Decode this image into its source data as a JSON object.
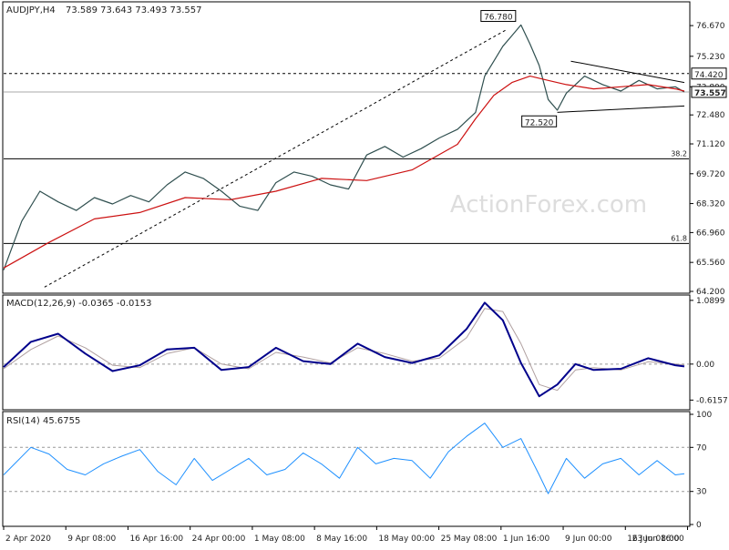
{
  "chart_data": {
    "type": "line",
    "symbol": "AUDJPY,H4",
    "ohlc_header": "73.589 73.643 73.493 73.557",
    "price_panel": {
      "ylim": [
        64.2,
        77.7
      ],
      "ticks": [
        "76.670",
        "75.230",
        "73.800",
        "72.480",
        "71.120",
        "69.720",
        "68.320",
        "66.960",
        "65.560",
        "64.200"
      ],
      "tick_values": [
        76.67,
        75.23,
        73.8,
        72.48,
        71.12,
        69.72,
        68.32,
        66.96,
        65.56,
        64.2
      ],
      "current_price": {
        "label": "73.557",
        "value": 73.557
      },
      "resistance": {
        "label": "74.420",
        "value": 74.42
      },
      "fib_levels": [
        {
          "label": "38.2",
          "value": 70.42
        },
        {
          "label": "61.8",
          "value": 66.45
        }
      ],
      "annotations": [
        {
          "label": "76.780",
          "x": 109,
          "value": 76.78
        },
        {
          "label": "72.520",
          "x": 118,
          "value": 72.52
        }
      ],
      "price_series": {
        "x": [
          0,
          4,
          8,
          12,
          16,
          20,
          24,
          28,
          32,
          36,
          40,
          44,
          48,
          52,
          56,
          60,
          64,
          68,
          72,
          76,
          80,
          84,
          88,
          92,
          96,
          100,
          104,
          106,
          108,
          110,
          112,
          114,
          116,
          118,
          120,
          122,
          124,
          128,
          132,
          136,
          140,
          144,
          148,
          150
        ],
        "values": [
          65.2,
          67.5,
          68.9,
          68.4,
          68.0,
          68.6,
          68.3,
          68.7,
          68.4,
          69.2,
          69.8,
          69.5,
          68.9,
          68.2,
          68.0,
          69.3,
          69.8,
          69.6,
          69.2,
          69.0,
          70.6,
          71.0,
          70.5,
          70.9,
          71.4,
          71.8,
          72.6,
          74.3,
          75.0,
          75.7,
          76.2,
          76.7,
          75.8,
          74.8,
          73.2,
          72.7,
          73.5,
          74.3,
          73.9,
          73.6,
          74.1,
          73.7,
          73.8,
          73.557
        ]
      },
      "ma_series": {
        "x": [
          0,
          10,
          20,
          30,
          40,
          50,
          60,
          70,
          80,
          90,
          100,
          104,
          108,
          112,
          116,
          120,
          124,
          130,
          136,
          142,
          148,
          150
        ],
        "values": [
          65.3,
          66.5,
          67.6,
          67.9,
          68.6,
          68.5,
          68.9,
          69.5,
          69.4,
          69.9,
          71.1,
          72.3,
          73.4,
          74.0,
          74.3,
          74.1,
          73.9,
          73.7,
          73.8,
          73.9,
          73.7,
          73.6
        ]
      },
      "triangle_upper": [
        {
          "x": 125,
          "value": 75.0
        },
        {
          "x": 150,
          "value": 74.0
        }
      ],
      "triangle_lower": [
        {
          "x": 122,
          "value": 72.6
        },
        {
          "x": 150,
          "value": 72.9
        }
      ],
      "trendline": [
        {
          "x": 9,
          "value": 64.4
        },
        {
          "x": 111,
          "value": 76.5
        }
      ]
    },
    "macd_panel": {
      "label": "MACD(12,26,9) -0.0365 -0.0153",
      "ylim": [
        -0.75,
        1.15
      ],
      "ticks": [
        "1.0899",
        "0.00",
        "-0.6157"
      ],
      "tick_values": [
        1.0899,
        0.0,
        -0.6157
      ],
      "macd": {
        "x": [
          0,
          6,
          12,
          18,
          24,
          30,
          36,
          42,
          48,
          54,
          60,
          66,
          72,
          78,
          84,
          90,
          96,
          102,
          106,
          110,
          114,
          118,
          122,
          126,
          130,
          136,
          142,
          148,
          150
        ],
        "values": [
          -0.05,
          0.38,
          0.52,
          0.18,
          -0.12,
          -0.02,
          0.25,
          0.28,
          -0.1,
          -0.05,
          0.28,
          0.05,
          0.0,
          0.35,
          0.12,
          0.02,
          0.15,
          0.6,
          1.05,
          0.75,
          0.02,
          -0.55,
          -0.35,
          0.0,
          -0.1,
          -0.08,
          0.1,
          -0.02,
          -0.04
        ]
      },
      "signal": {
        "x": [
          0,
          6,
          12,
          18,
          24,
          30,
          36,
          42,
          48,
          54,
          60,
          66,
          72,
          78,
          84,
          90,
          96,
          102,
          106,
          110,
          114,
          118,
          122,
          126,
          130,
          136,
          142,
          148,
          150
        ],
        "values": [
          -0.08,
          0.25,
          0.48,
          0.28,
          -0.02,
          -0.06,
          0.18,
          0.28,
          0.0,
          -0.08,
          0.2,
          0.12,
          0.02,
          0.28,
          0.18,
          0.05,
          0.1,
          0.45,
          0.95,
          0.9,
          0.35,
          -0.35,
          -0.45,
          -0.1,
          -0.06,
          -0.1,
          0.04,
          0.0,
          -0.015
        ]
      }
    },
    "rsi_panel": {
      "label": "RSI(14) 45.6755",
      "ylim": [
        0,
        100
      ],
      "ticks": [
        "100",
        "70",
        "30",
        "0"
      ],
      "tick_values": [
        100,
        70,
        30,
        0
      ],
      "guides": [
        70,
        30
      ],
      "rsi": {
        "x": [
          0,
          6,
          10,
          14,
          18,
          22,
          26,
          30,
          34,
          38,
          42,
          46,
          50,
          54,
          58,
          62,
          66,
          70,
          74,
          78,
          82,
          86,
          90,
          94,
          98,
          102,
          106,
          110,
          114,
          118,
          120,
          124,
          128,
          132,
          136,
          140,
          144,
          148,
          150
        ],
        "values": [
          45,
          70,
          64,
          50,
          45,
          55,
          62,
          68,
          48,
          36,
          60,
          40,
          50,
          60,
          45,
          50,
          65,
          55,
          42,
          70,
          55,
          60,
          58,
          42,
          66,
          80,
          92,
          70,
          78,
          45,
          28,
          60,
          42,
          55,
          60,
          45,
          58,
          45,
          46
        ]
      }
    },
    "x_axis": {
      "labels": [
        "2 Apr 2020",
        "9 Apr 08:00",
        "16 Apr 16:00",
        "24 Apr 00:00",
        "1 May 08:00",
        "8 May 16:00",
        "18 May 00:00",
        "25 May 08:00",
        "1 Jun 16:00",
        "9 Jun 00:00",
        "16 Jun 08:00",
        "23 Jun 16:00"
      ],
      "positions": [
        0,
        13.7,
        27.4,
        41.1,
        54.8,
        68.5,
        82.2,
        95.9,
        109.6,
        123.3,
        137,
        150.7
      ]
    },
    "watermark": "ActionForex.com",
    "colors": {
      "price": "#2f4f4f",
      "ma": "#cc1111",
      "macd": "#00008b",
      "signal": "#b0a0a0",
      "rsi": "#1e90ff",
      "grid_dash": "#999999",
      "text": "#222222",
      "watermark": "#dddddd"
    }
  }
}
